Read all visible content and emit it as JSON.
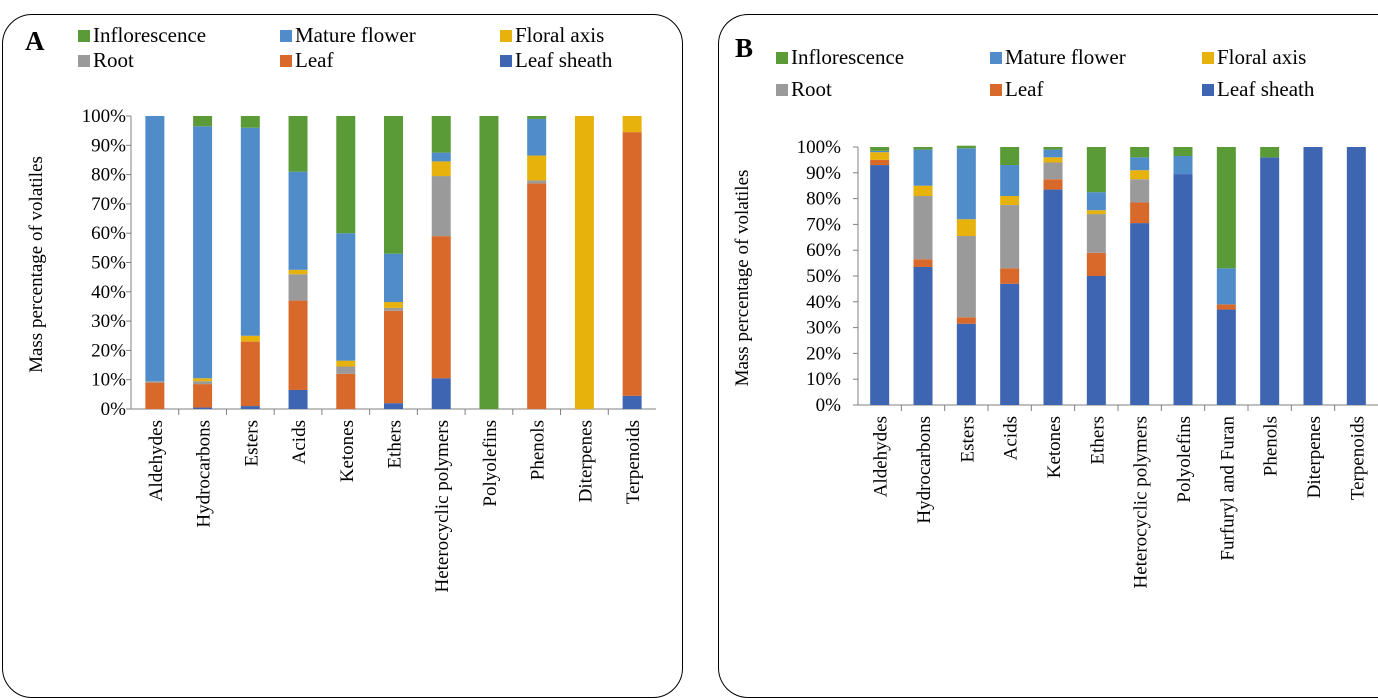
{
  "colors": {
    "Inflorescence": "#5b9b37",
    "Mature flower": "#4f8cc9",
    "Floral axis": "#e7b20b",
    "Root": "#9a9a9a",
    "Leaf": "#d8692b",
    "Leaf sheath": "#3e65b1"
  },
  "legend_order": [
    "Inflorescence",
    "Mature flower",
    "Floral axis",
    "Root",
    "Leaf",
    "Leaf sheath"
  ],
  "chart_data": [
    {
      "panel_letter": "A",
      "type": "bar",
      "stacked": true,
      "ylabel": "Mass  percentage of volatiles",
      "ylim": [
        0,
        100
      ],
      "yticks": [
        "0%",
        "10%",
        "20%",
        "30%",
        "40%",
        "50%",
        "60%",
        "70%",
        "80%",
        "90%",
        "100%"
      ],
      "grid": false,
      "legend_position": "top",
      "categories": [
        "Aldehydes",
        "Hydrocarbons",
        "Esters",
        "Acids",
        "Ketones",
        "Ethers",
        "Heterocyclic polymers",
        "Polyolefins",
        "Phenols",
        "Diterpenes",
        "Terpenoids"
      ],
      "series": [
        {
          "name": "Leaf sheath",
          "values": [
            0,
            0.5,
            1,
            6.5,
            0,
            2,
            10.5,
            0,
            0,
            0,
            4.5
          ]
        },
        {
          "name": "Leaf",
          "values": [
            9,
            8,
            22,
            30.5,
            12,
            31.5,
            48.5,
            0,
            77,
            0,
            90
          ]
        },
        {
          "name": "Root",
          "values": [
            0.5,
            1,
            0,
            9,
            2.5,
            1,
            20.5,
            0,
            1,
            0,
            0
          ]
        },
        {
          "name": "Floral axis",
          "values": [
            0,
            1,
            2,
            1.5,
            2,
            2,
            5,
            0,
            8.5,
            100,
            5.5
          ]
        },
        {
          "name": "Mature flower",
          "values": [
            90.5,
            86,
            71,
            33.5,
            43.5,
            16.5,
            3,
            0,
            12.5,
            0,
            0
          ]
        },
        {
          "name": "Inflorescence",
          "values": [
            0,
            3.5,
            4,
            19,
            40,
            47,
            12.5,
            100,
            1,
            0,
            0
          ]
        }
      ]
    },
    {
      "panel_letter": "B",
      "type": "bar",
      "stacked": true,
      "ylabel": "Mass percentage of volatiles",
      "ylim": [
        0,
        100
      ],
      "yticks": [
        "0%",
        "10%",
        "20%",
        "30%",
        "40%",
        "50%",
        "60%",
        "70%",
        "80%",
        "90%",
        "100%"
      ],
      "grid": false,
      "legend_position": "top",
      "categories": [
        "Aldehydes",
        "Hydrocarbons",
        "Esters",
        "Acids",
        "Ketones",
        "Ethers",
        "Heterocyclic polymers",
        "Polyolefins",
        "Furfuryl and Furan",
        "Phenols",
        "Diterpenes",
        "Terpenoids"
      ],
      "series": [
        {
          "name": "Leaf sheath",
          "values": [
            93,
            53.5,
            31.5,
            47,
            83.5,
            50,
            70.5,
            89.5,
            37,
            96,
            100,
            100
          ]
        },
        {
          "name": "Leaf",
          "values": [
            2,
            3,
            2.5,
            6,
            4,
            9,
            8,
            0,
            2,
            0,
            0,
            0
          ]
        },
        {
          "name": "Root",
          "values": [
            0,
            24.5,
            31.5,
            24.5,
            6.5,
            15,
            9,
            0,
            0,
            0,
            0,
            0
          ]
        },
        {
          "name": "Floral axis",
          "values": [
            3,
            4,
            6.5,
            3.5,
            2,
            1.5,
            3.5,
            0,
            0,
            0,
            0,
            0
          ]
        },
        {
          "name": "Mature flower",
          "values": [
            0.5,
            14,
            27.5,
            12,
            3,
            7,
            5,
            7,
            14,
            0,
            0,
            0
          ]
        },
        {
          "name": "Inflorescence",
          "values": [
            1.5,
            1,
            1,
            7,
            1,
            17.5,
            4,
            3.5,
            47,
            4,
            0,
            0
          ]
        }
      ]
    }
  ]
}
